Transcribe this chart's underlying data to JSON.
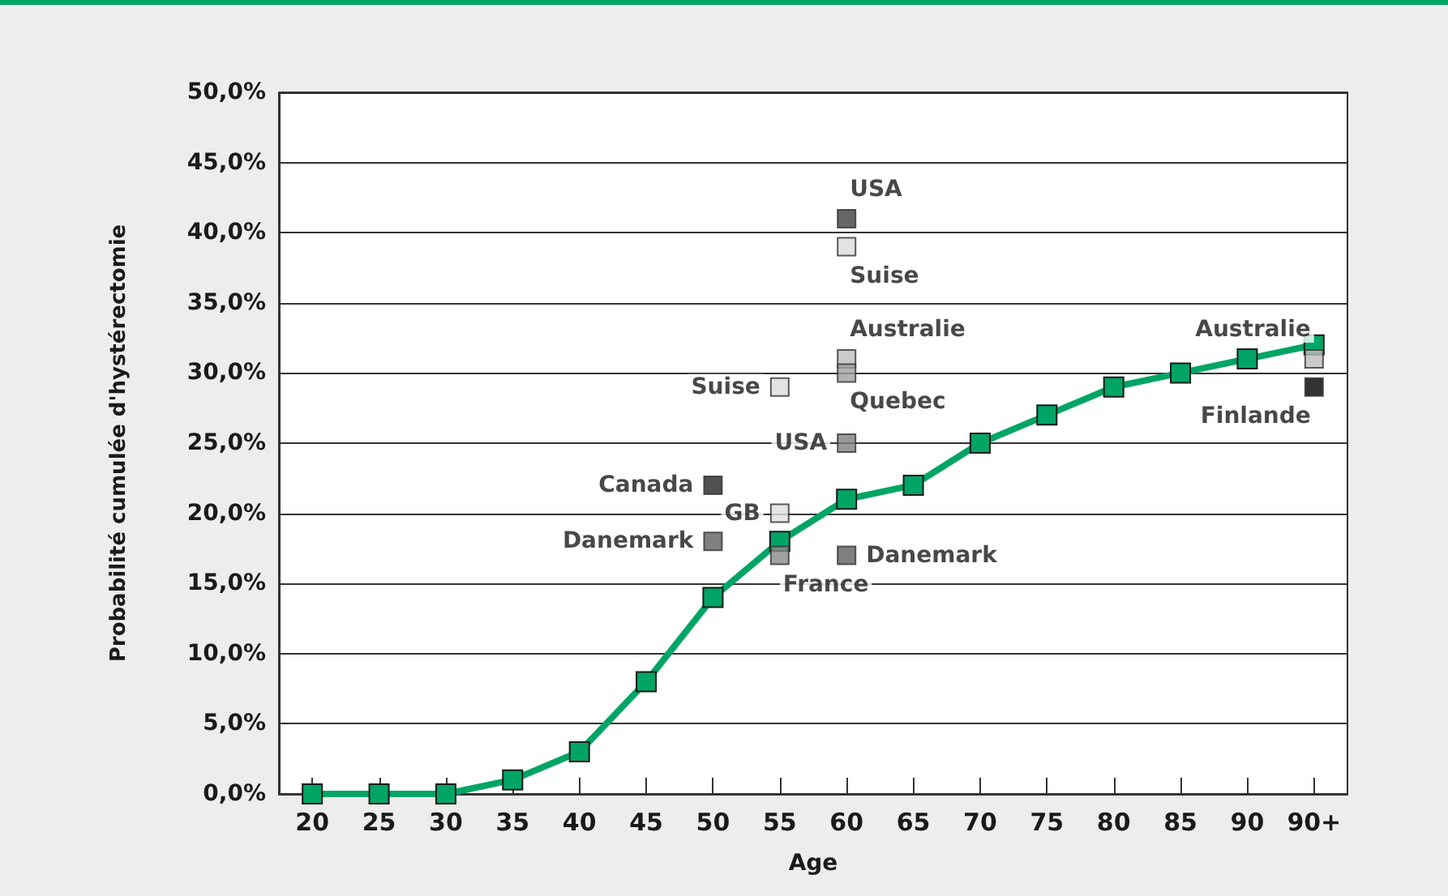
{
  "chart_data": {
    "type": "line",
    "xlabel": "Age",
    "ylabel": "Probabilité cumulée d'hystérectomie",
    "categories": [
      "20",
      "25",
      "30",
      "35",
      "40",
      "45",
      "50",
      "55",
      "60",
      "65",
      "70",
      "75",
      "80",
      "85",
      "90",
      "90+"
    ],
    "ylim": [
      0,
      50
    ],
    "yticks": [
      {
        "value": 0,
        "label": "0,0%"
      },
      {
        "value": 5,
        "label": "5,0%"
      },
      {
        "value": 10,
        "label": "10,0%"
      },
      {
        "value": 15,
        "label": "15,0%"
      },
      {
        "value": 20,
        "label": "20,0%"
      },
      {
        "value": 25,
        "label": "25,0%"
      },
      {
        "value": 30,
        "label": "30,0%"
      },
      {
        "value": 35,
        "label": "35,0%"
      },
      {
        "value": 40,
        "label": "40,0%"
      },
      {
        "value": 45,
        "label": "45,0%"
      },
      {
        "value": 50,
        "label": "50,0%"
      }
    ],
    "grid": "y",
    "marker": "square",
    "line_style": "solid",
    "series": [
      {
        "color": "#00a566",
        "values": [
          0,
          0,
          0,
          1,
          3,
          8,
          14,
          18,
          21,
          22,
          25,
          27,
          29,
          30,
          31,
          32
        ]
      },
      {
        "type": "scatter",
        "name": "USA",
        "x": [
          "60",
          "60"
        ],
        "values": [
          41,
          25
        ],
        "colors": [
          "#404040",
          "#808080"
        ]
      },
      {
        "type": "scatter",
        "name": "Suise",
        "x": [
          "60",
          "55"
        ],
        "values": [
          39,
          29
        ],
        "colors": [
          "#dcdcdc",
          "#dcdcdc"
        ]
      },
      {
        "type": "scatter",
        "name": "Australie",
        "x": [
          "60",
          "90+"
        ],
        "values": [
          31,
          31
        ],
        "colors": [
          "#bdbdbd",
          "#bdbdbd"
        ]
      },
      {
        "type": "scatter",
        "name": "Quebec",
        "x": [
          "60"
        ],
        "values": [
          30
        ],
        "colors": [
          "#a0a0a0"
        ]
      },
      {
        "type": "scatter",
        "name": "Canada",
        "x": [
          "50"
        ],
        "values": [
          22
        ],
        "colors": [
          "#262626"
        ]
      },
      {
        "type": "scatter",
        "name": "GB",
        "x": [
          "55"
        ],
        "values": [
          20
        ],
        "colors": [
          "#e0e0e0"
        ]
      },
      {
        "type": "scatter",
        "name": "Danemark",
        "x": [
          "50",
          "60"
        ],
        "values": [
          18,
          17
        ],
        "colors": [
          "#606060",
          "#606060"
        ]
      },
      {
        "type": "scatter",
        "name": "France",
        "x": [
          "55"
        ],
        "values": [
          17
        ],
        "colors": [
          "#8a8a8a"
        ]
      },
      {
        "type": "scatter",
        "name": "Finlande",
        "x": [
          "90+"
        ],
        "values": [
          29
        ],
        "colors": [
          "#000000"
        ]
      }
    ]
  }
}
